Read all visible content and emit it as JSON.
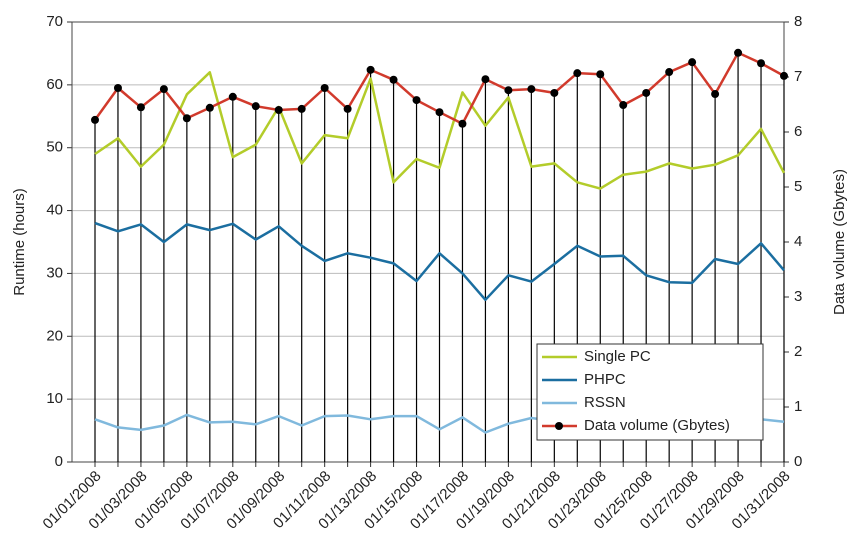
{
  "chart_data": {
    "type": "line",
    "categories": [
      "01/01/2008",
      null,
      "01/03/2008",
      null,
      "01/05/2008",
      null,
      "01/07/2008",
      null,
      "01/09/2008",
      null,
      "01/11/2008",
      null,
      "01/13/2008",
      null,
      "01/15/2008",
      null,
      "01/17/2008",
      null,
      "01/19/2008",
      null,
      "01/21/2008",
      null,
      "01/23/2008",
      null,
      "01/25/2008",
      null,
      "01/27/2008",
      null,
      "01/29/2008",
      null,
      "01/31/2008"
    ],
    "series": [
      {
        "name": "Single PC",
        "color": "#b3cc2a",
        "values": [
          49,
          51.5,
          47,
          50.5,
          58.5,
          62,
          48.5,
          50.5,
          56.5,
          47.5,
          52,
          51.5,
          61,
          44.5,
          48.2,
          46.8,
          58.8,
          53.5,
          58,
          47,
          47.5,
          44.5,
          43.5,
          45.7,
          46.2,
          47.5,
          46.7,
          47.3,
          48.8,
          53,
          46
        ]
      },
      {
        "name": "PHPC",
        "color": "#1b6ea0",
        "values": [
          38,
          36.7,
          37.8,
          35,
          37.8,
          36.9,
          37.9,
          35.4,
          37.5,
          34.4,
          32,
          33.2,
          32.5,
          31.6,
          28.8,
          33.2,
          30,
          25.8,
          29.7,
          28.7,
          31.5,
          34.4,
          32.7,
          32.8,
          29.7,
          28.6,
          28.5,
          32.3,
          31.5,
          34.8,
          30.5
        ]
      },
      {
        "name": "RSSN",
        "color": "#80b9dd",
        "values": [
          6.8,
          5.5,
          5.1,
          5.8,
          7.5,
          6.3,
          6.4,
          6.0,
          7.3,
          5.8,
          7.3,
          7.4,
          6.8,
          7.3,
          7.3,
          5.2,
          7.1,
          4.7,
          6.1,
          7.0,
          6.5,
          6.8,
          6.7,
          6.5,
          6.6,
          6.5,
          6.6,
          6.8,
          6.9,
          6.8,
          6.4
        ]
      },
      {
        "name": "Data volume (Gbytes)",
        "color": "#d13a2c",
        "axis": "y2",
        "marker_color": "#000000",
        "values": [
          6.22,
          6.8,
          6.45,
          6.78,
          6.25,
          6.44,
          6.64,
          6.47,
          6.4,
          6.42,
          6.8,
          6.42,
          7.13,
          6.95,
          6.58,
          6.36,
          6.15,
          6.96,
          6.76,
          6.78,
          6.71,
          7.07,
          7.05,
          6.49,
          6.71,
          7.09,
          7.27,
          6.69,
          7.44,
          7.25,
          7.02
        ]
      }
    ],
    "y_label": "Runtime (hours)",
    "y2_label": "Data volume (Gbytes)",
    "ylim": [
      0,
      70
    ],
    "yticks": [
      0,
      10,
      20,
      30,
      40,
      50,
      60,
      70
    ],
    "y2lim": [
      0,
      8
    ],
    "y2ticks": [
      0,
      1,
      2,
      3,
      4,
      5,
      6,
      7,
      8
    ],
    "grid": true,
    "drop_lines": true,
    "legend": "lower right"
  }
}
